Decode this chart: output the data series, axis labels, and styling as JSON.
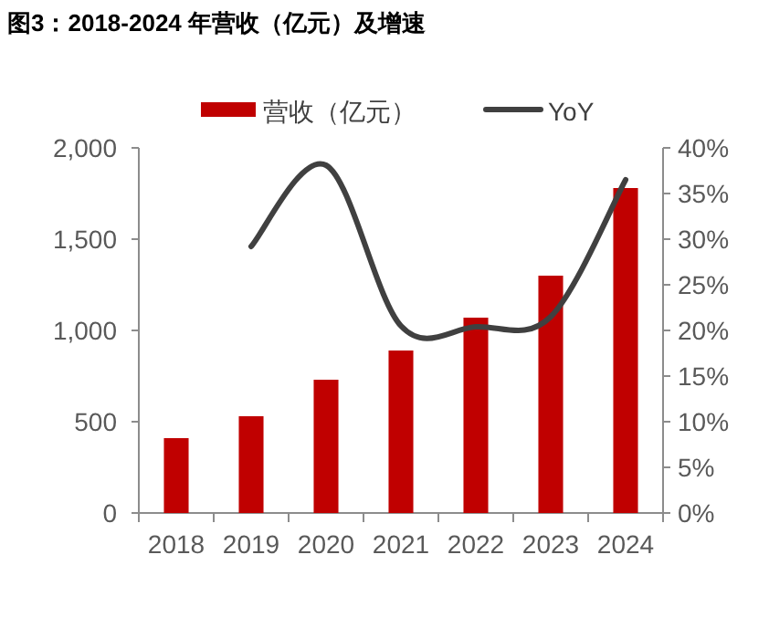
{
  "chart_data": {
    "type": "bar",
    "title": "图3：2018-2024 年营收（亿元）及增速",
    "categories": [
      "2018",
      "2019",
      "2020",
      "2021",
      "2022",
      "2023",
      "2024"
    ],
    "series": [
      {
        "name": "营收（亿元）",
        "color": "#c00000",
        "values": [
          410,
          530,
          730,
          890,
          1070,
          1300,
          1780
        ]
      },
      {
        "name": "YoY",
        "type": "line",
        "axis": "y2",
        "color": "#404040",
        "values": [
          null,
          29.2,
          38.1,
          20.5,
          20.4,
          21.5,
          36.5
        ]
      }
    ],
    "ylim": [
      0,
      2000
    ],
    "yticks": [
      0,
      500,
      {
        "value": 1000,
        "label": "1,000"
      },
      {
        "value": 1500,
        "label": "1,500"
      },
      {
        "value": 2000,
        "label": "2,000"
      }
    ],
    "y2lim": [
      0,
      40
    ],
    "y2ticks": [
      {
        "value": 0,
        "label": "0%"
      },
      {
        "value": 5,
        "label": "5%"
      },
      {
        "value": 10,
        "label": "10%"
      },
      {
        "value": 15,
        "label": "15%"
      },
      {
        "value": 20,
        "label": "20%"
      },
      {
        "value": 25,
        "label": "25%"
      },
      {
        "value": 30,
        "label": "30%"
      },
      {
        "value": 35,
        "label": "35%"
      },
      {
        "value": 40,
        "label": "40%"
      }
    ],
    "legend": "top"
  }
}
